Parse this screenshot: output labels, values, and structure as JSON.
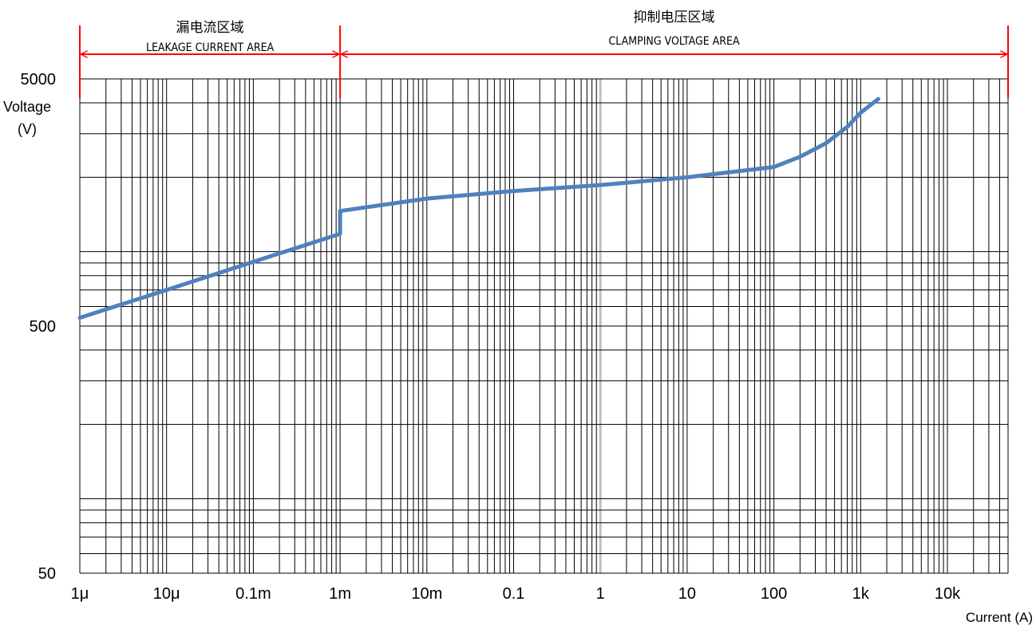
{
  "chart_data": {
    "type": "line",
    "x_scale": "log",
    "y_scale": "log",
    "xlim": [
      "1μ",
      "50k"
    ],
    "ylim": [
      50,
      5000
    ],
    "x_tick_labels": [
      "1μ",
      "10μ",
      "0.1m",
      "1m",
      "10m",
      "0.1",
      "1",
      "10",
      "100",
      "1k",
      "10k"
    ],
    "x_tick_values": [
      1e-06,
      1e-05,
      0.0001,
      0.001,
      0.01,
      0.1,
      1,
      10,
      100,
      1000,
      10000
    ],
    "y_tick_labels": [
      "50",
      "500",
      "5000"
    ],
    "y_tick_values": [
      50,
      500,
      5000
    ],
    "xlabel": "Current (A)",
    "ylabel_line1": "Voltage",
    "ylabel_line2": "(V)",
    "grid": true,
    "annotations": {
      "leakage": {
        "title_cn": "漏电流区域",
        "title_en": "LEAKAGE CURRENT AREA",
        "from_current": 1e-06,
        "to_current": 0.001
      },
      "clamping": {
        "title_cn": "抑制电压区域",
        "title_en": "CLAMPING VOLTAGE AREA",
        "from_current": 0.001,
        "to_current": 50000
      }
    },
    "series": [
      {
        "x": [
          1e-06,
          1e-05,
          0.0001,
          0.001,
          0.001,
          0.001,
          0.01,
          0.1,
          1,
          10,
          100,
          200,
          400,
          700,
          1000,
          1600
        ],
        "y": [
          540,
          700,
          910,
          1180,
          1290,
          1460,
          1640,
          1760,
          1860,
          2000,
          2200,
          2420,
          2750,
          3200,
          3650,
          4150
        ],
        "color": "#4f81bd"
      }
    ],
    "colors": {
      "curve": "#4f81bd",
      "arrows": "#ff0000",
      "grid": "#000000",
      "center_gridline": "#bfbfbf"
    }
  }
}
